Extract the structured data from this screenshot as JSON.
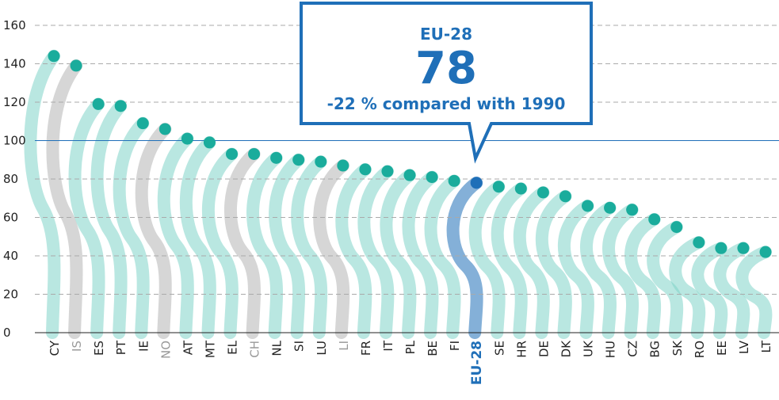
{
  "chart_data": {
    "type": "dot",
    "categories": [
      "CY",
      "IS",
      "ES",
      "PT",
      "IE",
      "NO",
      "AT",
      "MT",
      "EL",
      "CH",
      "NL",
      "SI",
      "LU",
      "LI",
      "FR",
      "IT",
      "PL",
      "BE",
      "FI",
      "EU-28",
      "SE",
      "HR",
      "DE",
      "DK",
      "UK",
      "HU",
      "CZ",
      "BG",
      "SK",
      "RO",
      "EE",
      "LV",
      "LT"
    ],
    "values": [
      144,
      139,
      119,
      118,
      109,
      106,
      101,
      99,
      93,
      93,
      91,
      90,
      89,
      87,
      85,
      84,
      82,
      81,
      79,
      78,
      76,
      75,
      73,
      71,
      66,
      65,
      64,
      59,
      55,
      47,
      44,
      44,
      42
    ],
    "color": "#1aac9c",
    "dot_colors": [
      "#1aac9c",
      "#1aac9c",
      "#1aac9c",
      "#1aac9c",
      "#1aac9c",
      "#1aac9c",
      "#1aac9c",
      "#1aac9c",
      "#1aac9c",
      "#1aac9c",
      "#1aac9c",
      "#1aac9c",
      "#1aac9c",
      "#1aac9c",
      "#1aac9c",
      "#1aac9c",
      "#1aac9c",
      "#1aac9c",
      "#1aac9c",
      "#1f6fb8",
      "#1aac9c",
      "#1aac9c",
      "#1aac9c",
      "#1aac9c",
      "#1aac9c",
      "#1aac9c",
      "#1aac9c",
      "#1aac9c",
      "#1aac9c",
      "#1aac9c",
      "#1aac9c",
      "#1aac9c",
      "#1aac9c"
    ],
    "plume_colors": [
      "#7fd3c8",
      "#b5b5b5",
      "#7fd3c8",
      "#7fd3c8",
      "#7fd3c8",
      "#b5b5b5",
      "#7fd3c8",
      "#7fd3c8",
      "#7fd3c8",
      "#b5b5b5",
      "#7fd3c8",
      "#7fd3c8",
      "#7fd3c8",
      "#b5b5b5",
      "#7fd3c8",
      "#7fd3c8",
      "#7fd3c8",
      "#7fd3c8",
      "#7fd3c8",
      "#1f6fb8",
      "#7fd3c8",
      "#7fd3c8",
      "#7fd3c8",
      "#7fd3c8",
      "#7fd3c8",
      "#7fd3c8",
      "#7fd3c8",
      "#7fd3c8",
      "#7fd3c8",
      "#7fd3c8",
      "#7fd3c8",
      "#7fd3c8",
      "#7fd3c8"
    ],
    "ylim": [
      0,
      160
    ],
    "yticks": [
      0,
      20,
      40,
      60,
      80,
      100,
      120,
      140,
      160
    ],
    "grid": true,
    "reference_line": 100,
    "callout": {
      "label": "EU-28",
      "value": 78,
      "note": "-22 % compared with 1990"
    }
  }
}
